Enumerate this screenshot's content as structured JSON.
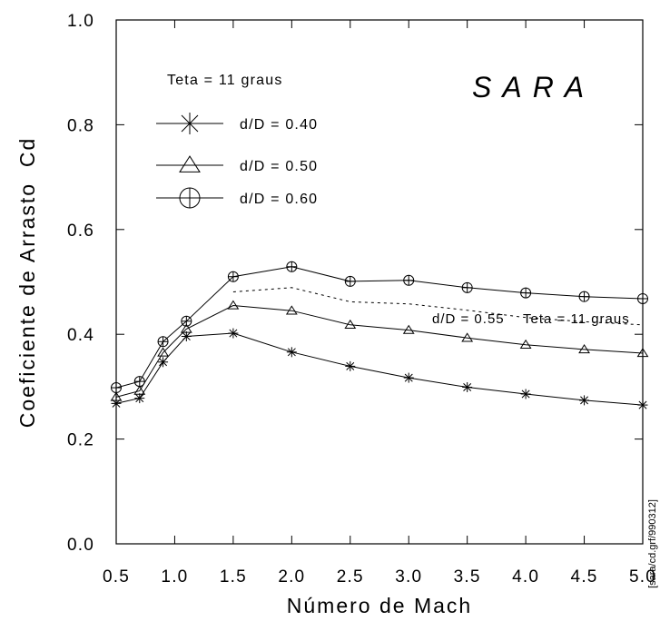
{
  "chart_data": {
    "type": "line",
    "brand_label": "SARA",
    "legend_title": "Teta = 11 graus",
    "xlabel": "Número de Mach",
    "ylabel": "Coeficiente de Arrasto  Cd",
    "xlim": [
      0.5,
      5.0
    ],
    "ylim": [
      0.0,
      1.0
    ],
    "x_ticks": [
      "0.5",
      "1.0",
      "1.5",
      "2.0",
      "2.5",
      "3.0",
      "3.5",
      "4.0",
      "4.5",
      "5.0"
    ],
    "y_ticks": [
      "0.0",
      "0.2",
      "0.4",
      "0.6",
      "0.8",
      "1.0"
    ],
    "grid": false,
    "legend_position": "top-left",
    "x": [
      0.5,
      0.7,
      0.9,
      1.1,
      1.5,
      2.0,
      2.5,
      3.0,
      3.5,
      4.0,
      4.5,
      5.0
    ],
    "series": [
      {
        "name": "d/D = 0.40",
        "marker": "asterisk",
        "values": [
          0.268,
          0.278,
          0.347,
          0.396,
          0.402,
          0.366,
          0.339,
          0.317,
          0.299,
          0.286,
          0.274,
          0.265
        ]
      },
      {
        "name": "d/D = 0.50",
        "marker": "triangle",
        "values": [
          0.28,
          0.292,
          0.365,
          0.41,
          0.455,
          0.445,
          0.418,
          0.408,
          0.393,
          0.38,
          0.371,
          0.364
        ]
      },
      {
        "name": "d/D = 0.60",
        "marker": "circle-cross",
        "values": [
          0.298,
          0.31,
          0.386,
          0.425,
          0.51,
          0.529,
          0.501,
          0.503,
          0.489,
          0.479,
          0.472,
          0.468
        ]
      }
    ],
    "dashed_series": {
      "label": "d/D = 0.55    Teta = 11 graus",
      "x": [
        1.5,
        2.0,
        2.5,
        3.0,
        3.5,
        4.0,
        4.5,
        5.0
      ],
      "values": [
        0.481,
        0.489,
        0.462,
        0.458,
        0.446,
        0.432,
        0.424,
        0.418
      ]
    },
    "side_note": "[sara/cd.grf/990312]"
  }
}
